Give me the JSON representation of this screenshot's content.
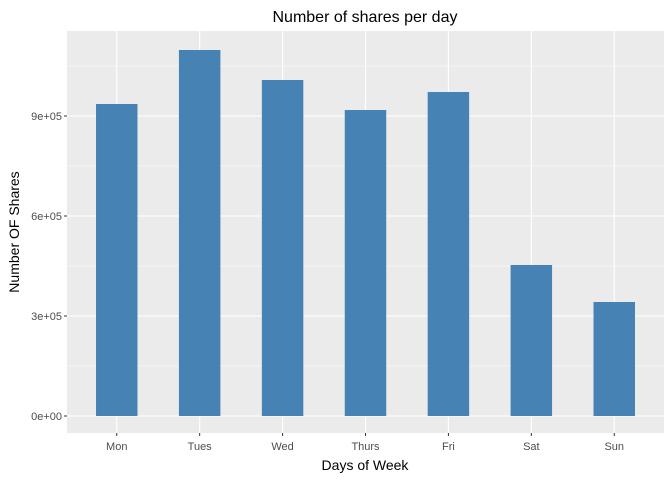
{
  "chart_data": {
    "type": "bar",
    "title": "Number of shares per day",
    "xlabel": "Days of Week",
    "ylabel": "Number OF Shares",
    "categories": [
      "Mon",
      "Tues",
      "Wed",
      "Thurs",
      "Fri",
      "Sat",
      "Sun"
    ],
    "values": [
      936000,
      1098000,
      1008000,
      918000,
      972000,
      453000,
      342000
    ],
    "yticks": [
      0,
      300000,
      600000,
      900000
    ],
    "ytick_labels": [
      "0e+00",
      "3e+05",
      "6e+05",
      "9e+05"
    ],
    "ylim": [
      -51000,
      1155000
    ],
    "grid": true,
    "bar_color": "#4682B4",
    "panel_color": "#EBEBEB"
  }
}
